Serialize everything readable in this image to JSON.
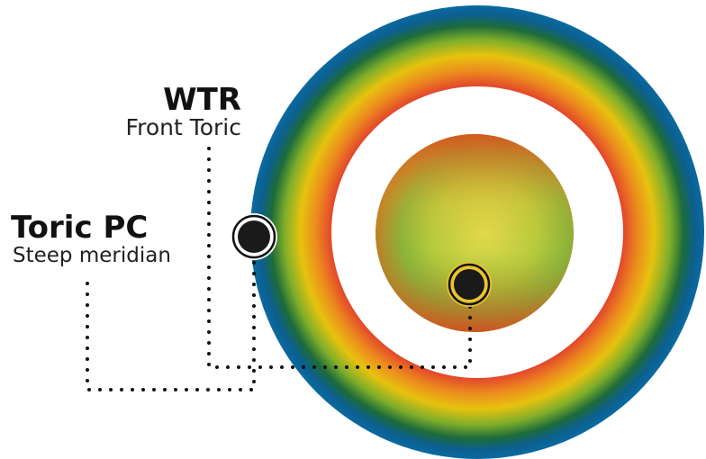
{
  "labels": [
    {
      "title": "WTR",
      "subtitle": "Front Toric"
    },
    {
      "title": "Toric PC",
      "subtitle": "Steep meridian"
    }
  ]
}
